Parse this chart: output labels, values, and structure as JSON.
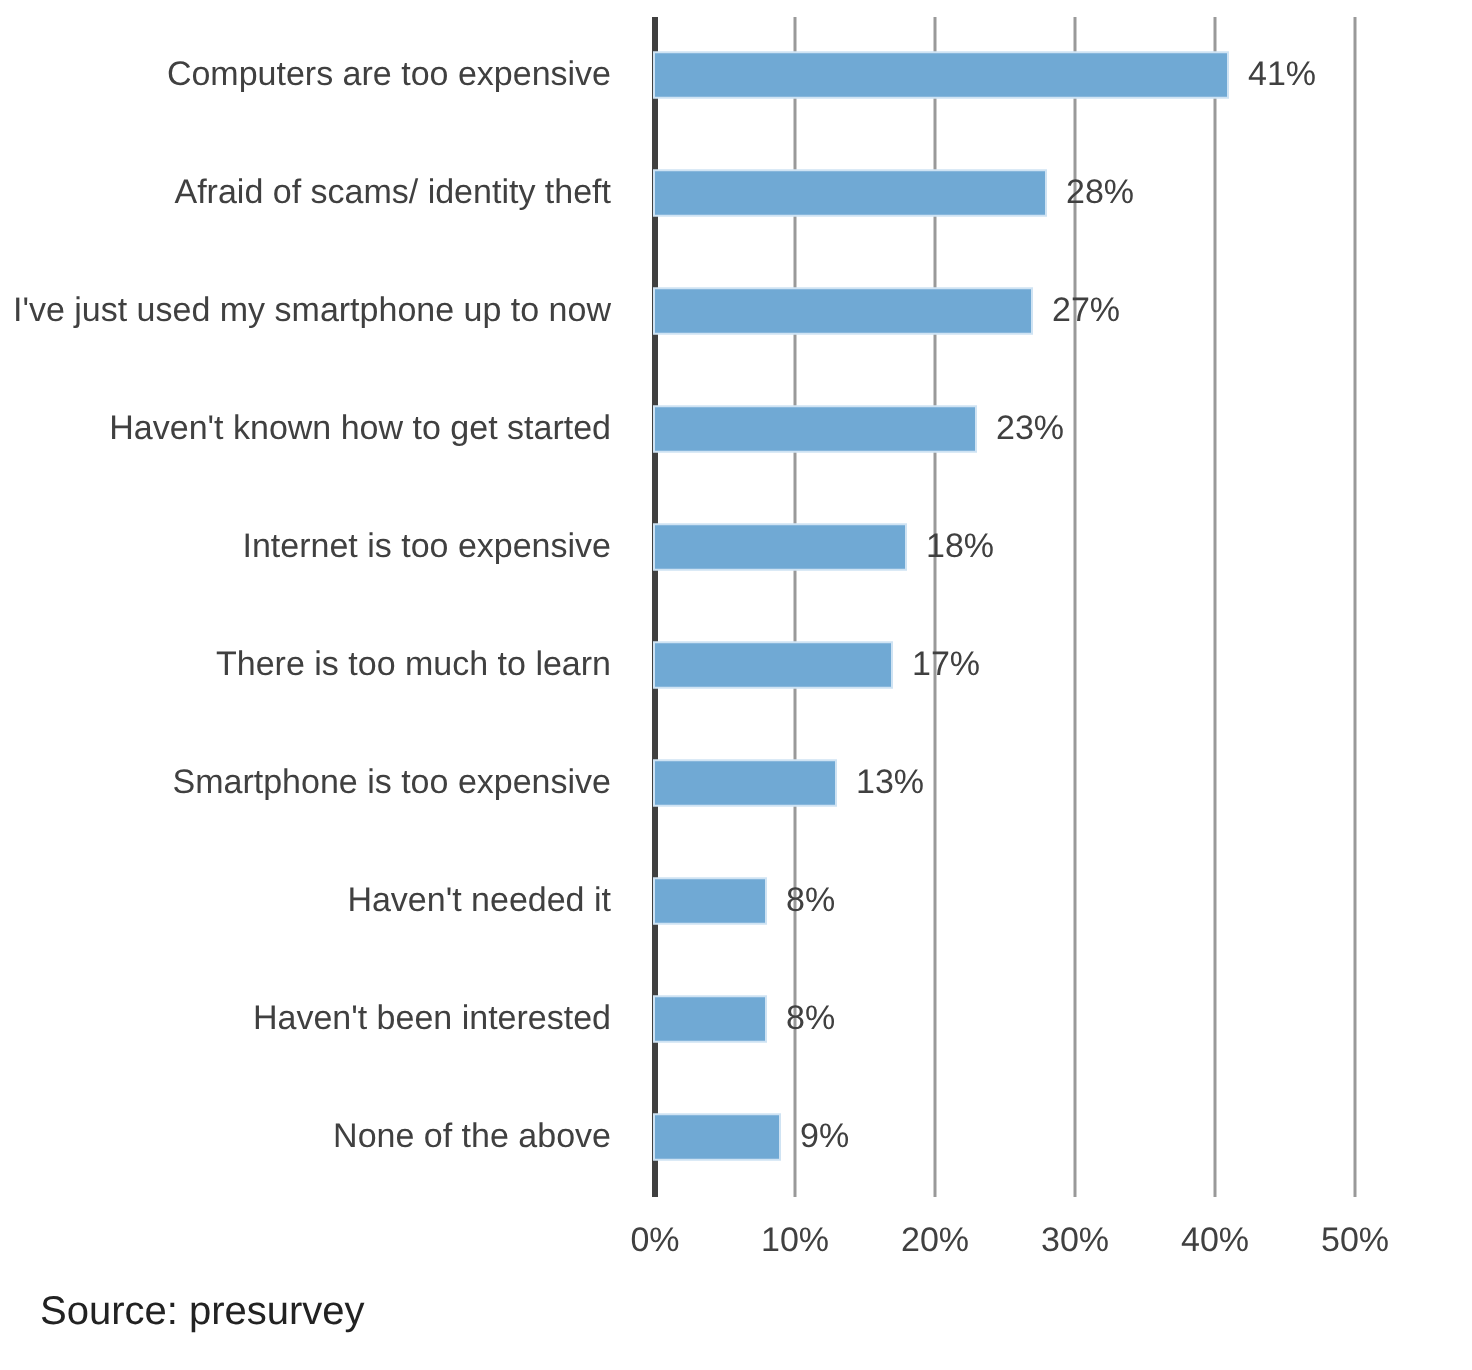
{
  "chart_data": {
    "type": "bar",
    "orientation": "horizontal",
    "categories": [
      "Computers are too expensive",
      "Afraid of scams/ identity theft",
      "I've just used my smartphone up to now",
      "Haven't known how to get started",
      "Internet is too expensive",
      "There is too much to learn",
      "Smartphone is too expensive",
      "Haven't needed it",
      "Haven't been interested",
      "None of the above"
    ],
    "values": [
      41,
      28,
      27,
      23,
      18,
      17,
      13,
      8,
      8,
      9
    ],
    "value_labels": [
      "41%",
      "28%",
      "27%",
      "23%",
      "18%",
      "17%",
      "13%",
      "8%",
      "8%",
      "9%"
    ],
    "color": "#70a9d4",
    "xlim": [
      0,
      50
    ],
    "xticks": [
      {
        "value": 0,
        "label": "0%"
      },
      {
        "value": 10,
        "label": "10%"
      },
      {
        "value": 20,
        "label": "20%"
      },
      {
        "value": 30,
        "label": "30%"
      },
      {
        "value": 40,
        "label": "40%"
      },
      {
        "value": 50,
        "label": "50%"
      }
    ],
    "grid": "x",
    "annotations": [
      "Source: presurvey"
    ]
  }
}
